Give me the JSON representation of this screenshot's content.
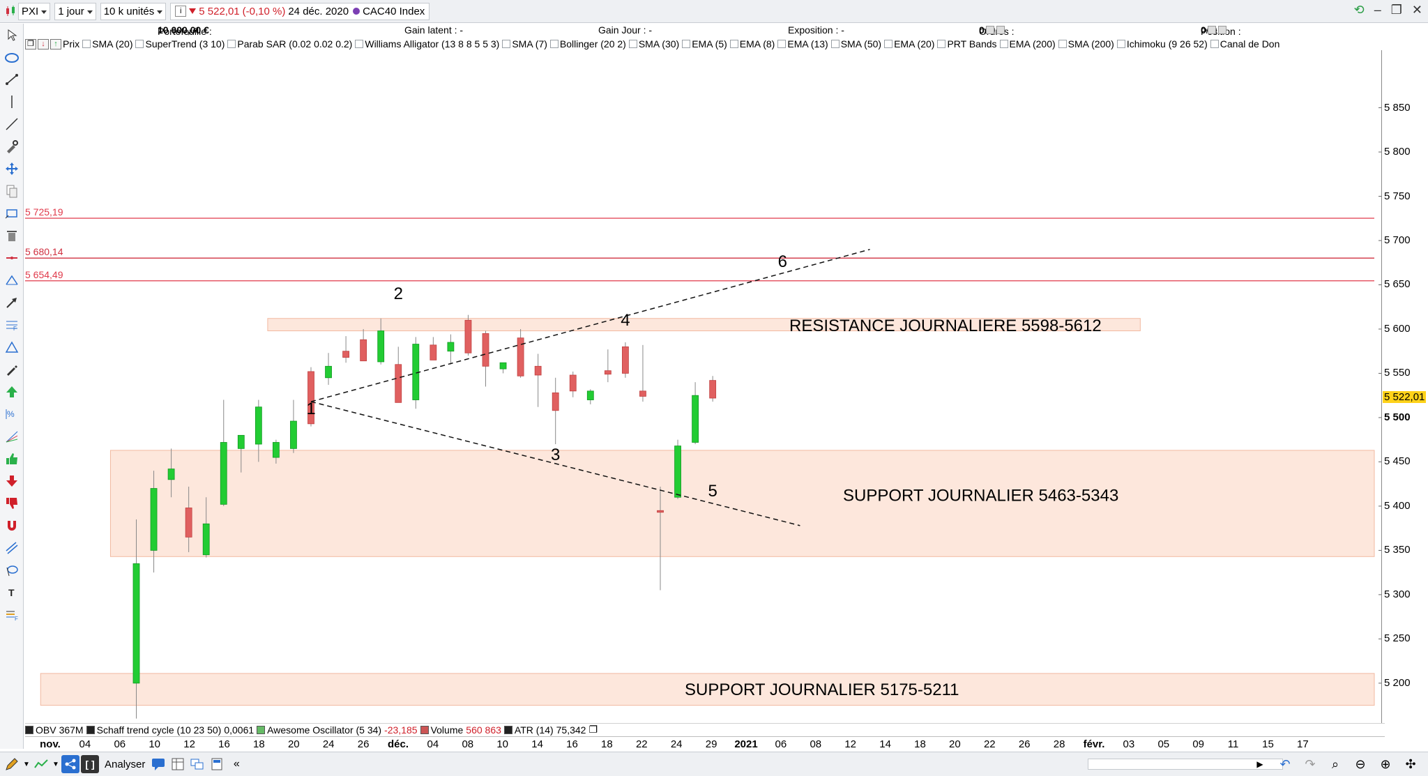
{
  "toolbar": {
    "symbol": "PXI",
    "period": "1 jour",
    "units": "10 k unités",
    "price_text": "5 522,01",
    "change_text": "(-0,10 %)",
    "date_text": "24 déc. 2020",
    "instrument": "CAC40 Index"
  },
  "stats": {
    "portefeuille_label": "Portefeuille :",
    "portefeuille_value": "10 000,00 €",
    "gain_latent": "Gain latent : -",
    "gain_jour": "Gain Jour : -",
    "exposition": "Exposition : -",
    "ordres_label": "Ordres :",
    "ordres_a": "0",
    "ordres_b": "0",
    "position_label": "Position :",
    "position_a": "0",
    "position_b": "0"
  },
  "indicators": [
    "Prix",
    "SMA (20)",
    "SuperTrend (3 10)",
    "Parab SAR (0.02 0.02 0.2)",
    "Williams Alligator (13 8 8 5 5 3)",
    "SMA (7)",
    "Bollinger (20 2)",
    "SMA (30)",
    "EMA (5)",
    "EMA (8)",
    "EMA (13)",
    "SMA (50)",
    "EMA (20)",
    "PRT Bands",
    "EMA (200)",
    "SMA (200)",
    "Ichimoku (9 26 52)",
    "Canal de Don"
  ],
  "sub_indicators": [
    {
      "name": "OBV",
      "value": "367M",
      "color": "#222222"
    },
    {
      "name": "Schaff trend cycle (10 23 50)",
      "value": "0,0061",
      "color": "#222222"
    },
    {
      "name": "Awesome Oscillator (5 34)",
      "value": "-23,185",
      "color": "#66bb66"
    },
    {
      "name": "Volume",
      "value": "560 863",
      "color": "#cc5555"
    },
    {
      "name": "ATR (14)",
      "value": "75,342",
      "color": "#222222"
    }
  ],
  "bottombar": {
    "analyser_label": "Analyser"
  },
  "chart_data": {
    "type": "candlestick",
    "instrument": "CAC40 Index",
    "period": "1 jour",
    "ylim": [
      5155,
      5915
    ],
    "y_ticks": [
      5200,
      5250,
      5300,
      5350,
      5400,
      5450,
      5500,
      5550,
      5600,
      5650,
      5700,
      5750,
      5800,
      5850
    ],
    "y_tick_labels": [
      "5 200",
      "5 250",
      "5 300",
      "5 350",
      "5 400",
      "5 450",
      "5 500",
      "5 550",
      "5 600",
      "5 650",
      "5 700",
      "5 750",
      "5 800",
      "5 850"
    ],
    "last_price": 5522.01,
    "last_price_label": "5 522,01",
    "emphasized_tick": "5 500",
    "x_labels": [
      "nov.",
      "04",
      "06",
      "10",
      "12",
      "16",
      "18",
      "20",
      "24",
      "26",
      "déc.",
      "04",
      "08",
      "10",
      "14",
      "16",
      "18",
      "22",
      "24",
      "29",
      "2021",
      "06",
      "08",
      "12",
      "14",
      "18",
      "20",
      "22",
      "26",
      "28",
      "févr.",
      "03",
      "05",
      "09",
      "11",
      "15",
      "17"
    ],
    "candles": [
      {
        "o": 5200,
        "h": 5385,
        "l": 5160,
        "c": 5335
      },
      {
        "o": 5350,
        "h": 5440,
        "l": 5325,
        "c": 5420
      },
      {
        "o": 5430,
        "h": 5465,
        "l": 5410,
        "c": 5442
      },
      {
        "o": 5398,
        "h": 5422,
        "l": 5348,
        "c": 5365
      },
      {
        "o": 5345,
        "h": 5410,
        "l": 5342,
        "c": 5380
      },
      {
        "o": 5402,
        "h": 5520,
        "l": 5400,
        "c": 5472
      },
      {
        "o": 5465,
        "h": 5478,
        "l": 5438,
        "c": 5480
      },
      {
        "o": 5470,
        "h": 5520,
        "l": 5450,
        "c": 5512
      },
      {
        "o": 5455,
        "h": 5475,
        "l": 5448,
        "c": 5472
      },
      {
        "o": 5465,
        "h": 5520,
        "l": 5460,
        "c": 5496
      },
      {
        "o": 5552,
        "h": 5557,
        "l": 5490,
        "c": 5493
      },
      {
        "o": 5545,
        "h": 5573,
        "l": 5537,
        "c": 5558
      },
      {
        "o": 5575,
        "h": 5592,
        "l": 5562,
        "c": 5568
      },
      {
        "o": 5588,
        "h": 5600,
        "l": 5567,
        "c": 5564
      },
      {
        "o": 5563,
        "h": 5612,
        "l": 5560,
        "c": 5598
      },
      {
        "o": 5560,
        "h": 5580,
        "l": 5518,
        "c": 5517
      },
      {
        "o": 5520,
        "h": 5591,
        "l": 5510,
        "c": 5583
      },
      {
        "o": 5582,
        "h": 5591,
        "l": 5565,
        "c": 5565
      },
      {
        "o": 5575,
        "h": 5594,
        "l": 5560,
        "c": 5585
      },
      {
        "o": 5610,
        "h": 5616,
        "l": 5570,
        "c": 5573
      },
      {
        "o": 5595,
        "h": 5598,
        "l": 5535,
        "c": 5558
      },
      {
        "o": 5555,
        "h": 5560,
        "l": 5550,
        "c": 5562
      },
      {
        "o": 5590,
        "h": 5600,
        "l": 5545,
        "c": 5547
      },
      {
        "o": 5558,
        "h": 5572,
        "l": 5512,
        "c": 5548
      },
      {
        "o": 5528,
        "h": 5545,
        "l": 5470,
        "c": 5508
      },
      {
        "o": 5548,
        "h": 5552,
        "l": 5523,
        "c": 5530
      },
      {
        "o": 5520,
        "h": 5532,
        "l": 5515,
        "c": 5530
      },
      {
        "o": 5553,
        "h": 5577,
        "l": 5540,
        "c": 5549
      },
      {
        "o": 5580,
        "h": 5585,
        "l": 5545,
        "c": 5550
      },
      {
        "o": 5530,
        "h": 5582,
        "l": 5518,
        "c": 5524
      },
      {
        "o": 5395,
        "h": 5422,
        "l": 5305,
        "c": 5393
      },
      {
        "o": 5410,
        "h": 5475,
        "l": 5408,
        "c": 5468
      },
      {
        "o": 5472,
        "h": 5540,
        "l": 5470,
        "c": 5525
      },
      {
        "o": 5542,
        "h": 5547,
        "l": 5518,
        "c": 5522
      }
    ],
    "horizontal_lines": [
      {
        "value": 5725.19,
        "label": "5 725,19",
        "color": "#e0394a"
      },
      {
        "value": 5680.14,
        "label": "5 680,14",
        "color": "#d03040"
      },
      {
        "value": 5654.49,
        "label": "5 654,49",
        "color": "#e0394a"
      }
    ],
    "zones": [
      {
        "from": 5598,
        "to": 5612,
        "label": "RESISTANCE JOURNALIERE 5598-5612",
        "x_start_bar": 8,
        "x_end_bar": 57
      },
      {
        "from": 5343,
        "to": 5463,
        "label": "SUPPORT JOURNALIER 5463-5343",
        "x_start_bar": -1,
        "x_end_bar": 77
      },
      {
        "from": 5175,
        "to": 5211,
        "label": "SUPPORT  JOURNALIER 5175-5211",
        "x_start_bar": -5,
        "x_end_bar": 77
      }
    ],
    "trendlines": [
      {
        "from_bar": 10,
        "from_value": 5518,
        "to_bar": 42,
        "to_value": 5690
      },
      {
        "from_bar": 10,
        "from_value": 5518,
        "to_bar": 38,
        "to_value": 5378
      }
    ],
    "wave_labels": [
      {
        "label": "1",
        "bar": 10,
        "value": 5504
      },
      {
        "label": "2",
        "bar": 15,
        "value": 5634
      },
      {
        "label": "3",
        "bar": 24,
        "value": 5452
      },
      {
        "label": "4",
        "bar": 28,
        "value": 5604
      },
      {
        "label": "5",
        "bar": 33,
        "value": 5411
      },
      {
        "label": "6",
        "bar": 37,
        "value": 5670
      }
    ],
    "grid": false
  }
}
